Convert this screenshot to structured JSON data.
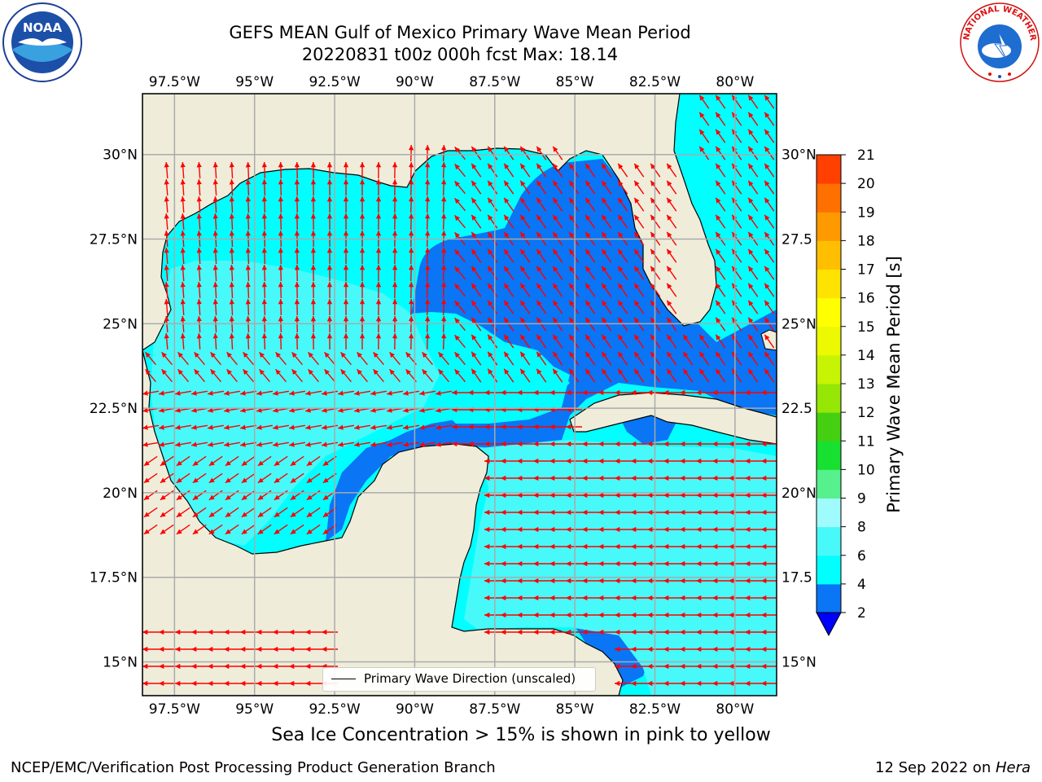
{
  "title_line1": "GEFS MEAN Gulf of Mexico Primary Wave Mean Period",
  "title_line2": "20220831 t00z 000h fcst   Max: 18.14",
  "logos": {
    "left": {
      "name": "noaa-logo",
      "text_top": "NATIONAL OCEANIC AND ATMOSPHERIC ADMINISTRATION",
      "text_bottom": "U.S. DEPARTMENT OF COMMERCE",
      "center": "NOAA"
    },
    "right": {
      "name": "nws-logo",
      "text": "NATIONAL WEATHER SERVICE"
    }
  },
  "map": {
    "lon_range": [
      -98.5,
      -78.7
    ],
    "lat_range": [
      14.0,
      31.8
    ],
    "lon_ticks": [
      -97.5,
      -95,
      -92.5,
      -90,
      -87.5,
      -85,
      -82.5,
      -80
    ],
    "lat_ticks": [
      15,
      17.5,
      20,
      22.5,
      25,
      27.5,
      30
    ],
    "lon_tick_labels": [
      "97.5°W",
      "95°W",
      "92.5°W",
      "90°W",
      "87.5°W",
      "85°W",
      "82.5°W",
      "80°W"
    ],
    "lat_tick_labels": [
      "15°N",
      "17.5°N",
      "20°N",
      "22.5°N",
      "25°N",
      "27.5°N",
      "30°N"
    ],
    "lat_tick_labels_right": [
      "15°N",
      "17.5",
      "20°N",
      "22.5",
      "25°N",
      "27.5",
      "30°N"
    ],
    "gridlines": true,
    "land_color": "#efedda",
    "arrow_color": "#ff0000"
  },
  "colorbar": {
    "label": "Primary Wave Mean Period [s]",
    "tick_labels": [
      "2",
      "4",
      "6",
      "8",
      "9",
      "10",
      "11",
      "12",
      "13",
      "14",
      "15",
      "16",
      "17",
      "18",
      "19",
      "20",
      "21"
    ],
    "levels": [
      2,
      4,
      6,
      8,
      9,
      10,
      11,
      12,
      13,
      14,
      15,
      16,
      17,
      18,
      19,
      20,
      21
    ],
    "colors": [
      "#0a75f5",
      "#00ffff",
      "#48f9f9",
      "#a0fcfc",
      "#56f08c",
      "#18e030",
      "#44d010",
      "#96e606",
      "#c6f403",
      "#ecf900",
      "#ffff00",
      "#ffe300",
      "#ffbf00",
      "#ff9900",
      "#ff7000",
      "#ff4000",
      "#ff1000"
    ],
    "under_color": "#0000ff",
    "extend": "min"
  },
  "legend": {
    "label": "Primary Wave Direction (unscaled)",
    "placement": "lower-center"
  },
  "subcaption": "Sea Ice Concentration > 15% is shown in pink to yellow",
  "credit_left": "NCEP/EMC/Verification Post Processing Product Generation Branch",
  "credit_right_prefix": "12 Sep 2022 on ",
  "credit_right_host": "Hera"
}
